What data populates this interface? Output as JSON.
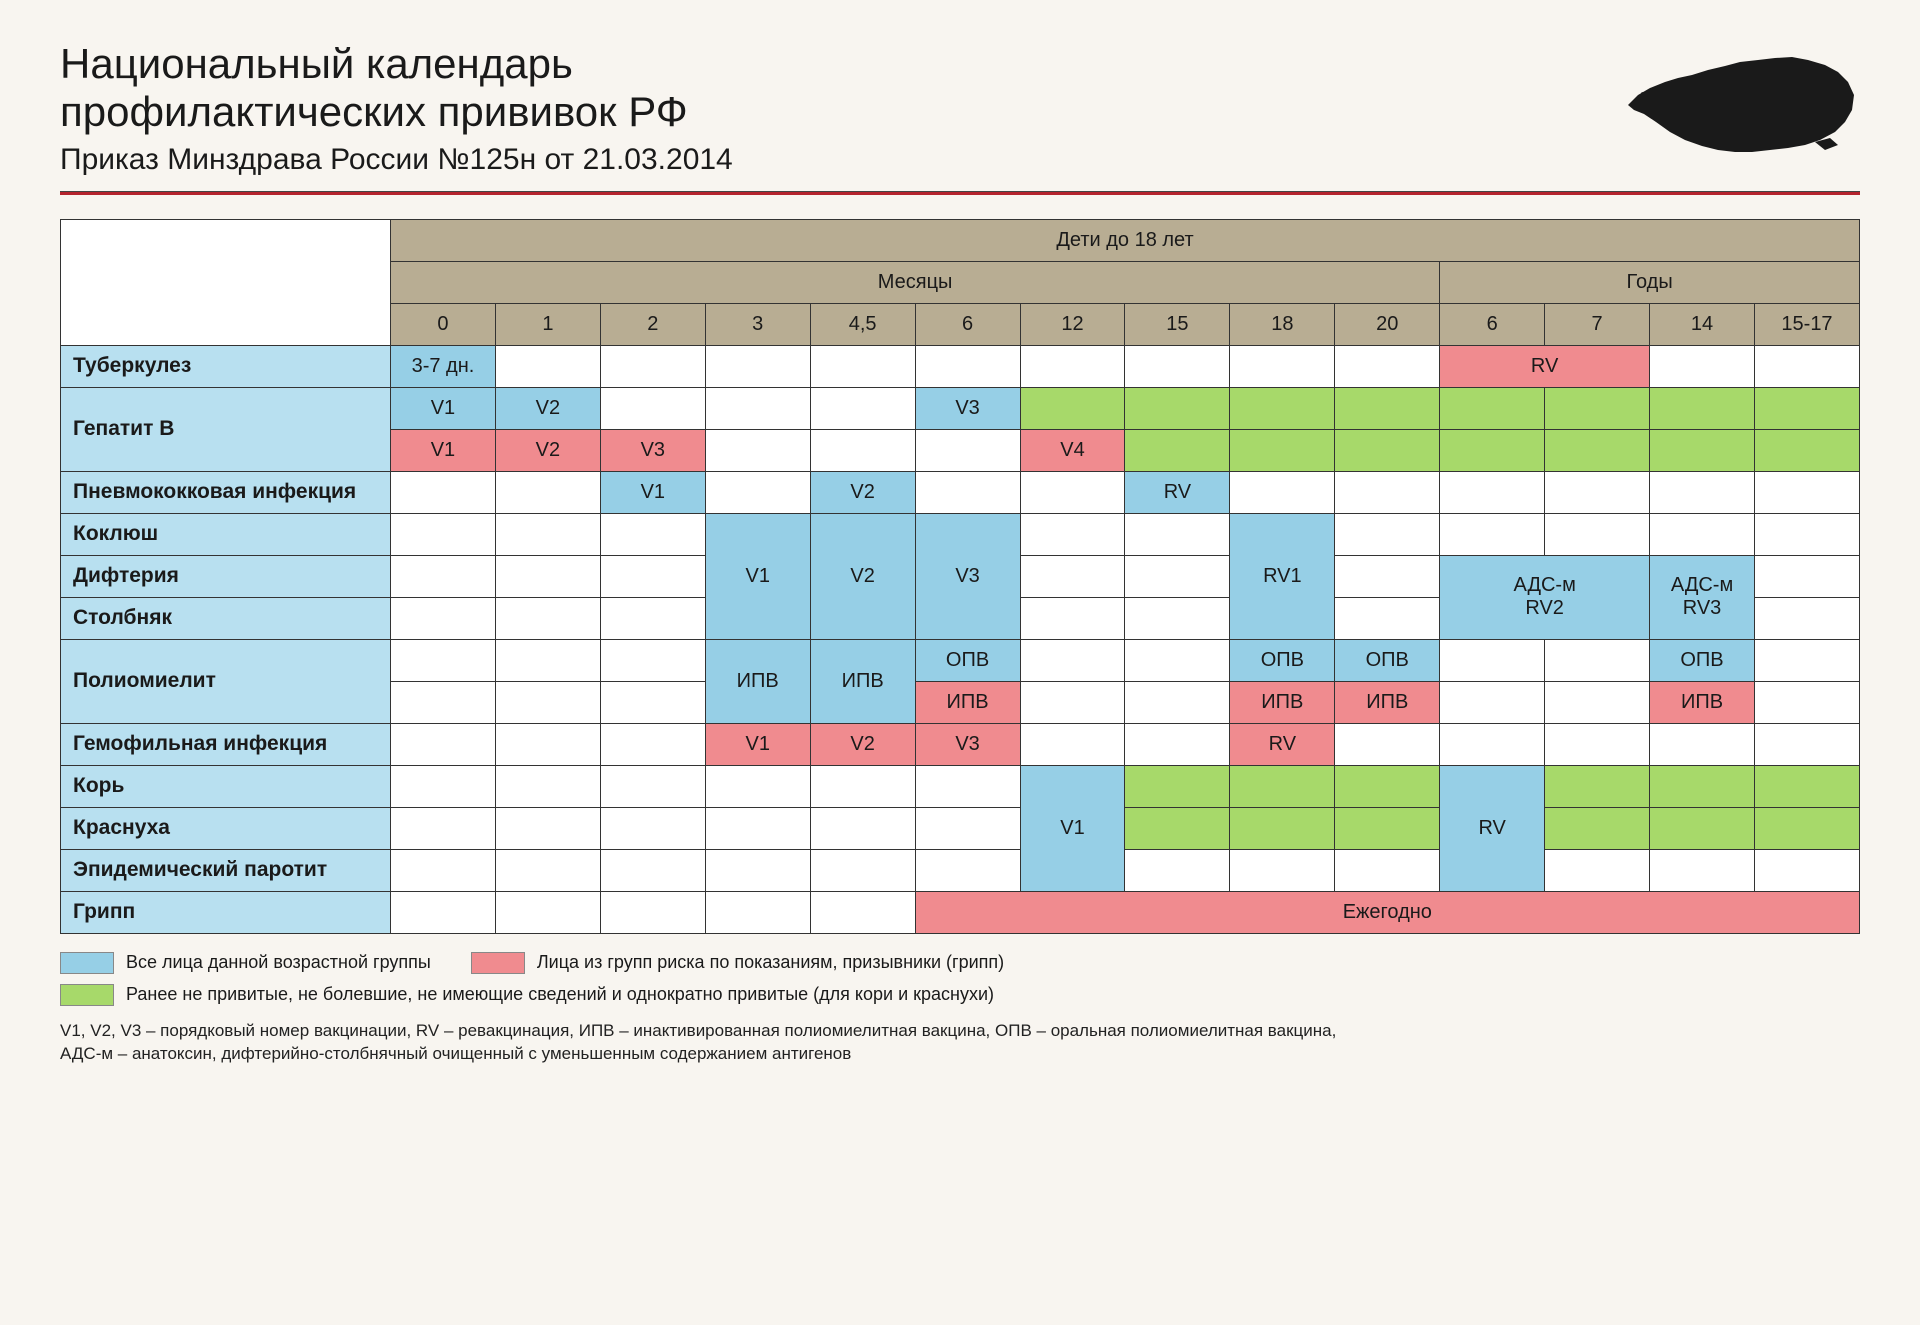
{
  "title_line1": "Национальный календарь",
  "title_line2": "профилактических прививок РФ",
  "subtitle": "Приказ Минздрава России №125н от 21.03.2014",
  "colors": {
    "blue": "#96cfe6",
    "pink": "#f08b8f",
    "green": "#a7d96a",
    "header_bg": "#b8ad93",
    "rowname_bg": "#b8e0f0",
    "divider": "#b4232d",
    "border": "#333333",
    "page_bg": "#f8f5f0"
  },
  "header": {
    "top": "Дети до 18 лет",
    "months": "Месяцы",
    "years": "Годы",
    "month_cols": [
      "0",
      "1",
      "2",
      "3",
      "4,5",
      "6",
      "12",
      "15",
      "18",
      "20"
    ],
    "year_cols": [
      "6",
      "7",
      "14",
      "15-17"
    ]
  },
  "diseases": {
    "tub": "Туберкулез",
    "hepb": "Гепатит B",
    "pneumo": "Пневмококковая инфекция",
    "pertussis": "Коклюш",
    "diphtheria": "Дифтерия",
    "tetanus": "Столбняк",
    "polio": "Полиомиелит",
    "hib": "Гемофильная инфекция",
    "measles": "Корь",
    "rubella": "Краснуха",
    "mumps": "Эпидемический паротит",
    "flu": "Грипп"
  },
  "cells": {
    "tub_0": "3-7 дн.",
    "tub_rv": "RV",
    "hepb_a_0": "V1",
    "hepb_a_1": "V2",
    "hepb_a_6": "V3",
    "hepb_b_0": "V1",
    "hepb_b_1": "V2",
    "hepb_b_2": "V3",
    "hepb_b_12": "V4",
    "pneumo_2": "V1",
    "pneumo_45": "V2",
    "pneumo_15": "RV",
    "dtp_3": "V1",
    "dtp_45": "V2",
    "dtp_6": "V3",
    "dtp_18": "RV1",
    "ads_67": "АДС-м\nRV2",
    "ads_14": "АДС-м\nRV3",
    "polio_3": "ИПВ",
    "polio_45": "ИПВ",
    "polio_6a": "ОПВ",
    "polio_6b": "ИПВ",
    "polio_18a": "ОПВ",
    "polio_18b": "ИПВ",
    "polio_20a": "ОПВ",
    "polio_20b": "ИПВ",
    "polio_14a": "ОПВ",
    "polio_14b": "ИПВ",
    "hib_3": "V1",
    "hib_45": "V2",
    "hib_6": "V3",
    "hib_18": "RV",
    "mmr_12": "V1",
    "mmr_6": "RV",
    "flu_all": "Ежегодно"
  },
  "legend": {
    "blue": "Все лица данной возрастной группы",
    "pink": "Лица из групп риска по показаниям, призывники (грипп)",
    "green": "Ранее не привитые, не болевшие, не имеющие сведений и однократно привитые (для кори и краснухи)"
  },
  "footnote1": "V1, V2, V3 – порядковый номер вакцинации, RV – ревакцинация,  ИПВ – инактивированная полиомиелитная вакцина, ОПВ – оральная полиомиелитная вакцина,",
  "footnote2": "АДС-м – анатоксин, дифтерийно-столбнячный очищенный с уменьшенным содержанием антигенов"
}
